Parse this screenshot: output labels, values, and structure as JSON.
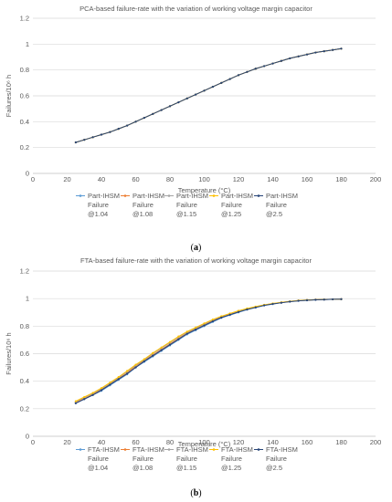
{
  "captions": {
    "a_open": "(",
    "a_letter": "a",
    "a_close": ")",
    "b_open": "(",
    "b_letter": "b",
    "b_close": ")"
  },
  "chart_data": [
    {
      "type": "line",
      "title": "PCA-based failure-rate with the variation of working voltage margin capacitor",
      "xlabel": "Temperature (°C)",
      "ylabel": "Failures/10⁶ h",
      "xlim": [
        0,
        200
      ],
      "ylim": [
        0,
        1.2
      ],
      "xticks": [
        "0",
        "20",
        "40",
        "60",
        "80",
        "100",
        "120",
        "140",
        "160",
        "180",
        "200"
      ],
      "yticks": [
        "0",
        "0.2",
        "0.4",
        "0.6",
        "0.8",
        "1",
        "1.2"
      ],
      "grid": "horizontal",
      "legend_position": "bottom",
      "x": [
        25,
        30,
        35,
        40,
        45,
        50,
        55,
        60,
        65,
        70,
        75,
        80,
        85,
        90,
        95,
        100,
        105,
        110,
        115,
        120,
        125,
        130,
        135,
        140,
        145,
        150,
        155,
        160,
        165,
        170,
        175,
        180
      ],
      "series": [
        {
          "name": "Part-IHSM Failure @1.04",
          "color": "#5b9bd5",
          "values": [
            0.24,
            0.26,
            0.28,
            0.3,
            0.32,
            0.345,
            0.37,
            0.4,
            0.43,
            0.46,
            0.49,
            0.52,
            0.55,
            0.58,
            0.61,
            0.64,
            0.67,
            0.7,
            0.73,
            0.76,
            0.785,
            0.81,
            0.83,
            0.85,
            0.87,
            0.89,
            0.905,
            0.92,
            0.935,
            0.945,
            0.955,
            0.965
          ]
        },
        {
          "name": "Part-IHSM Failure @1.08",
          "color": "#ed7d31",
          "values": [
            0.24,
            0.26,
            0.28,
            0.3,
            0.32,
            0.345,
            0.37,
            0.4,
            0.43,
            0.46,
            0.49,
            0.52,
            0.55,
            0.58,
            0.61,
            0.64,
            0.67,
            0.7,
            0.73,
            0.76,
            0.785,
            0.81,
            0.83,
            0.85,
            0.87,
            0.89,
            0.905,
            0.92,
            0.935,
            0.945,
            0.955,
            0.965
          ]
        },
        {
          "name": "Part-IHSM Failure @1.15",
          "color": "#a5a5a5",
          "values": [
            0.24,
            0.26,
            0.28,
            0.3,
            0.32,
            0.345,
            0.37,
            0.4,
            0.43,
            0.46,
            0.49,
            0.52,
            0.55,
            0.58,
            0.61,
            0.64,
            0.67,
            0.7,
            0.73,
            0.76,
            0.785,
            0.81,
            0.83,
            0.85,
            0.87,
            0.89,
            0.905,
            0.92,
            0.935,
            0.945,
            0.955,
            0.965
          ]
        },
        {
          "name": "Part-IHSM Failure @1.25",
          "color": "#ffc000",
          "values": [
            0.24,
            0.26,
            0.28,
            0.3,
            0.32,
            0.345,
            0.37,
            0.4,
            0.43,
            0.46,
            0.49,
            0.52,
            0.55,
            0.58,
            0.61,
            0.64,
            0.67,
            0.7,
            0.73,
            0.76,
            0.785,
            0.81,
            0.83,
            0.85,
            0.87,
            0.89,
            0.905,
            0.92,
            0.935,
            0.945,
            0.955,
            0.965
          ]
        },
        {
          "name": "Part-IHSM Failure @2.5",
          "color": "#264478",
          "values": [
            0.24,
            0.26,
            0.28,
            0.3,
            0.32,
            0.345,
            0.37,
            0.4,
            0.43,
            0.46,
            0.49,
            0.52,
            0.55,
            0.58,
            0.61,
            0.64,
            0.67,
            0.7,
            0.73,
            0.76,
            0.785,
            0.81,
            0.83,
            0.85,
            0.87,
            0.89,
            0.905,
            0.92,
            0.935,
            0.945,
            0.955,
            0.965
          ]
        }
      ],
      "legend_lines": [
        [
          "Part-IHSM",
          "Failure",
          "@1.04"
        ],
        [
          "Part-IHSM",
          "Failure",
          "@1.08"
        ],
        [
          "Part-IHSM",
          "Failure",
          "@1.15"
        ],
        [
          "Part-IHSM",
          "Failure",
          "@1.25"
        ],
        [
          "Part-IHSM",
          "Failure",
          "@2.5"
        ]
      ]
    },
    {
      "type": "line",
      "title": "FTA-based failure-rate with the variation of working voltage margin capacitor",
      "xlabel": "Temperature (°C)",
      "ylabel": "Failures/10⁶ h",
      "xlim": [
        0,
        200
      ],
      "ylim": [
        0,
        1.2
      ],
      "xticks": [
        "0",
        "20",
        "40",
        "60",
        "80",
        "100",
        "120",
        "140",
        "160",
        "180",
        "200"
      ],
      "yticks": [
        "0",
        "0.2",
        "0.4",
        "0.6",
        "0.8",
        "1",
        "1.2"
      ],
      "grid": "horizontal",
      "legend_position": "bottom",
      "x": [
        25,
        30,
        35,
        40,
        45,
        50,
        55,
        60,
        65,
        70,
        75,
        80,
        85,
        90,
        95,
        100,
        105,
        110,
        115,
        120,
        125,
        130,
        135,
        140,
        145,
        150,
        155,
        160,
        165,
        170,
        175,
        180
      ],
      "series": [
        {
          "name": "FTA-IHSM Failure @1.04",
          "color": "#5b9bd5",
          "values": [
            0.24,
            0.27,
            0.3,
            0.33,
            0.37,
            0.41,
            0.45,
            0.5,
            0.54,
            0.58,
            0.62,
            0.66,
            0.7,
            0.74,
            0.77,
            0.8,
            0.83,
            0.86,
            0.88,
            0.9,
            0.92,
            0.935,
            0.95,
            0.96,
            0.97,
            0.978,
            0.984,
            0.988,
            0.991,
            0.993,
            0.995,
            0.996
          ]
        },
        {
          "name": "FTA-IHSM Failure @1.08",
          "color": "#ed7d31",
          "values": [
            0.245,
            0.275,
            0.305,
            0.34,
            0.38,
            0.42,
            0.46,
            0.51,
            0.55,
            0.59,
            0.63,
            0.67,
            0.71,
            0.75,
            0.78,
            0.81,
            0.84,
            0.865,
            0.885,
            0.905,
            0.923,
            0.938,
            0.952,
            0.962,
            0.971,
            0.979,
            0.985,
            0.989,
            0.992,
            0.994,
            0.995,
            0.996
          ]
        },
        {
          "name": "FTA-IHSM Failure @1.15",
          "color": "#a5a5a5",
          "values": [
            0.25,
            0.28,
            0.31,
            0.345,
            0.385,
            0.425,
            0.47,
            0.515,
            0.555,
            0.6,
            0.64,
            0.68,
            0.72,
            0.755,
            0.785,
            0.815,
            0.845,
            0.87,
            0.89,
            0.91,
            0.926,
            0.94,
            0.954,
            0.964,
            0.972,
            0.98,
            0.986,
            0.99,
            0.992,
            0.994,
            0.995,
            0.996
          ]
        },
        {
          "name": "FTA-IHSM Failure @1.25",
          "color": "#ffc000",
          "values": [
            0.255,
            0.285,
            0.315,
            0.35,
            0.39,
            0.43,
            0.475,
            0.52,
            0.56,
            0.605,
            0.645,
            0.685,
            0.725,
            0.76,
            0.79,
            0.82,
            0.848,
            0.872,
            0.892,
            0.912,
            0.928,
            0.942,
            0.955,
            0.965,
            0.973,
            0.98,
            0.986,
            0.99,
            0.992,
            0.994,
            0.995,
            0.996
          ]
        },
        {
          "name": "FTA-IHSM Failure @2.5",
          "color": "#264478",
          "values": [
            0.24,
            0.27,
            0.3,
            0.335,
            0.375,
            0.415,
            0.455,
            0.5,
            0.545,
            0.585,
            0.625,
            0.665,
            0.705,
            0.745,
            0.775,
            0.805,
            0.835,
            0.862,
            0.883,
            0.903,
            0.921,
            0.936,
            0.951,
            0.961,
            0.97,
            0.978,
            0.984,
            0.988,
            0.991,
            0.993,
            0.995,
            0.996
          ]
        }
      ],
      "legend_lines": [
        [
          "FTA-IHSM",
          "Failure",
          "@1.04"
        ],
        [
          "FTA-IHSM",
          "Failure",
          "@1.08"
        ],
        [
          "FTA-IHSM",
          "Failure",
          "@1.15"
        ],
        [
          "FTA-IHSM",
          "Failure",
          "@1.25"
        ],
        [
          "FTA-IHSM",
          "Failure",
          "@2.5"
        ]
      ]
    }
  ]
}
